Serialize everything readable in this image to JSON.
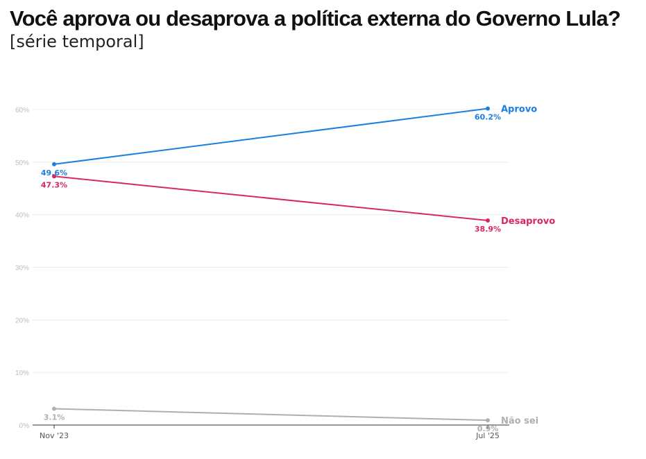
{
  "header": {
    "title": "Você aprova ou desaprova a política externa do Governo Lula?",
    "subtitle": "[série temporal]"
  },
  "chart_data": {
    "type": "line",
    "title": "Você aprova ou desaprova a política externa do Governo Lula?",
    "subtitle": "[série temporal]",
    "xlabel": "",
    "ylabel": "",
    "x": [
      "Nov '23",
      "Jul '25"
    ],
    "ylim": [
      0,
      60
    ],
    "yticks": [
      "0%",
      "10%",
      "20%",
      "30%",
      "40%",
      "50%",
      "60%"
    ],
    "grid": true,
    "legend": "series labels at right end of lines",
    "series": [
      {
        "name": "Aprovo",
        "values": [
          49.6,
          60.2
        ],
        "labels": [
          "49.6%",
          "60.2%"
        ],
        "color": "#1a7fe0"
      },
      {
        "name": "Desaprovo",
        "values": [
          47.3,
          38.9
        ],
        "labels": [
          "47.3%",
          "38.9%"
        ],
        "color": "#d8275f"
      },
      {
        "name": "Não sei",
        "values": [
          3.1,
          0.9
        ],
        "labels": [
          "3.1%",
          "0.9%"
        ],
        "color": "#b3aeac"
      }
    ]
  }
}
